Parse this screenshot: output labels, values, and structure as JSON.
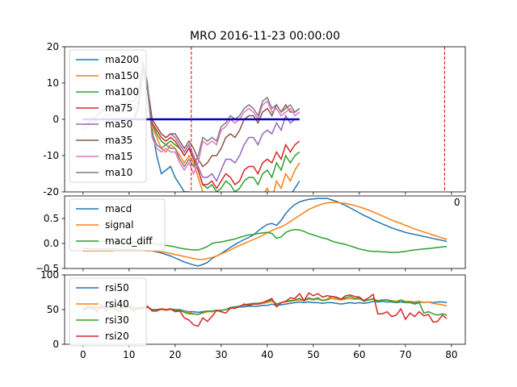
{
  "title": "MRO 2016-11-23 00:00:00",
  "colors": {
    "ma200": "#1f77b4",
    "ma150": "#ff7f0e",
    "ma100": "#2ca02c",
    "ma75": "#d62728",
    "ma50": "#9467bd",
    "ma35": "#8c564b",
    "ma15": "#e377c2",
    "ma10": "#7f7f7f",
    "marker_line": "#0000cc",
    "vline": "#dd0000"
  },
  "chart_data": [
    {
      "type": "line",
      "panel": "moving-averages",
      "title": "MRO 2016-11-23 00:00:00",
      "xlim": [
        -4,
        83
      ],
      "ylim": [
        -20,
        20
      ],
      "yticks": [
        20,
        10,
        0,
        -10,
        -20
      ],
      "xticks_visible": [
        "0"
      ],
      "legend_position": "upper-left",
      "vlines_x": [
        23.5,
        78.5
      ],
      "hline": {
        "y": 0,
        "x": [
          0,
          47
        ],
        "color": "#0000cc"
      },
      "series": [
        {
          "name": "ma200",
          "color": "#1f77b4",
          "x_start": 0,
          "values": [
            0,
            0,
            0,
            0,
            0,
            0,
            0,
            0,
            0,
            0,
            0,
            0,
            3,
            14,
            8,
            -3,
            -10,
            -15,
            -14,
            -13,
            -16,
            -18,
            -20,
            -20,
            -21,
            -24,
            -25,
            -25,
            -24,
            -23,
            -22,
            -24,
            -23,
            -24,
            -25,
            -22,
            -23,
            -21,
            -24,
            -22,
            -23,
            -24,
            -21,
            -22,
            -20,
            -21,
            -19,
            -17
          ]
        },
        {
          "name": "ma150",
          "color": "#ff7f0e",
          "x_start": 0,
          "values": [
            0,
            0,
            0,
            0,
            0,
            0,
            0,
            0,
            0,
            0,
            0,
            0,
            3,
            14,
            9,
            -2,
            -5,
            -8,
            -9,
            -7,
            -8,
            -10,
            -12,
            -10,
            -12,
            -16,
            -20,
            -21,
            -20,
            -22,
            -21,
            -22,
            -23,
            -25,
            -24,
            -22,
            -21,
            -20,
            -24,
            -21,
            -19,
            -22,
            -17,
            -19,
            -15,
            -17,
            -14,
            -12
          ]
        },
        {
          "name": "ma100",
          "color": "#2ca02c",
          "x_start": 0,
          "values": [
            0,
            0,
            0,
            0,
            0,
            0,
            0,
            0,
            0,
            0,
            0,
            0,
            3,
            14,
            9,
            -1,
            -4,
            -6,
            -7,
            -6,
            -7,
            -8,
            -10,
            -8,
            -11,
            -14,
            -18,
            -19,
            -18,
            -20,
            -19,
            -17,
            -18,
            -20,
            -19,
            -17,
            -16,
            -16,
            -18,
            -15,
            -14,
            -16,
            -12,
            -14,
            -10,
            -12,
            -10,
            -9
          ]
        },
        {
          "name": "ma75",
          "color": "#d62728",
          "x_start": 0,
          "values": [
            0,
            0,
            0,
            0,
            0,
            0,
            0,
            0,
            0,
            0,
            0,
            0,
            3,
            14,
            9,
            -1,
            -3,
            -5,
            -6,
            -5,
            -6,
            -8,
            -10,
            -8,
            -11,
            -14,
            -18,
            -18,
            -17,
            -19,
            -17,
            -15,
            -16,
            -18,
            -17,
            -14,
            -13,
            -13,
            -15,
            -12,
            -11,
            -12,
            -9,
            -11,
            -7,
            -9,
            -7,
            -6
          ]
        },
        {
          "name": "ma50",
          "color": "#9467bd",
          "x_start": 0,
          "values": [
            0,
            0,
            0,
            0,
            0,
            0,
            0,
            0,
            0,
            0,
            0,
            0,
            3,
            14,
            9,
            0,
            -2,
            -4,
            -5,
            -4,
            -5,
            -7,
            -9,
            -7,
            -10,
            -13,
            -16,
            -16,
            -15,
            -17,
            -14,
            -11,
            -11,
            -12,
            -10,
            -7,
            -5,
            -5,
            -7,
            -4,
            -3,
            -4,
            -1,
            -3,
            1,
            -1,
            0,
            0
          ]
        },
        {
          "name": "ma35",
          "color": "#8c564b",
          "x_start": 0,
          "values": [
            0,
            0,
            0,
            0,
            0,
            0,
            0,
            0,
            0,
            0,
            0,
            0,
            3,
            14,
            9,
            0,
            -2,
            -4,
            -5,
            -4,
            -4,
            -6,
            -8,
            -6,
            -8,
            -11,
            -13,
            -12,
            -10,
            -10,
            -8,
            -5,
            -4,
            -5,
            -3,
            0,
            1,
            1,
            -1,
            2,
            3,
            1,
            4,
            2,
            4,
            2,
            2,
            3
          ]
        },
        {
          "name": "ma15",
          "color": "#e377c2",
          "x_start": 0,
          "values": [
            -3,
            -2,
            -1,
            0,
            0,
            1,
            1,
            2,
            2,
            2,
            3,
            3,
            5,
            15,
            9,
            -5,
            -8,
            -9,
            -8,
            -9,
            -9,
            -12,
            -14,
            -12,
            -15,
            -12,
            -6,
            -7,
            -6,
            -7,
            -3,
            -2,
            0,
            -1,
            0,
            2,
            3,
            2,
            0,
            4,
            5,
            2,
            3,
            1,
            2,
            3,
            1,
            2
          ]
        },
        {
          "name": "ma10",
          "color": "#7f7f7f",
          "x_start": 0,
          "values": [
            -2,
            -1,
            0,
            1,
            2,
            3,
            3,
            4,
            4,
            4,
            5,
            5,
            7,
            16,
            10,
            -4,
            -7,
            -8,
            -7,
            -8,
            -8,
            -11,
            -13,
            -11,
            -13,
            -10,
            -5,
            -6,
            -5,
            -6,
            -2,
            -1,
            1,
            0,
            1,
            3,
            4,
            3,
            1,
            5,
            6,
            3,
            4,
            2,
            3,
            4,
            2,
            3
          ]
        }
      ]
    },
    {
      "type": "line",
      "panel": "macd",
      "xlim": [
        -4,
        83
      ],
      "ylim": [
        -0.5,
        0.95
      ],
      "yticks": [
        "0.5",
        "0.0",
        "−0.5"
      ],
      "ytick_values": [
        0.5,
        0.0,
        -0.5
      ],
      "legend_position": "upper-left",
      "series": [
        {
          "name": "macd",
          "color": "#1f77b4",
          "x_start": 0,
          "values": [
            -0.1,
            -0.1,
            -0.11,
            -0.11,
            -0.11,
            -0.11,
            -0.11,
            -0.11,
            -0.12,
            -0.12,
            -0.12,
            -0.12,
            -0.13,
            -0.13,
            -0.14,
            -0.15,
            -0.17,
            -0.19,
            -0.22,
            -0.25,
            -0.29,
            -0.33,
            -0.37,
            -0.4,
            -0.43,
            -0.45,
            -0.42,
            -0.38,
            -0.3,
            -0.25,
            -0.2,
            -0.14,
            -0.08,
            -0.02,
            0.03,
            0.08,
            0.12,
            0.17,
            0.25,
            0.32,
            0.38,
            0.4,
            0.36,
            0.46,
            0.6,
            0.7,
            0.78,
            0.83,
            0.86,
            0.88,
            0.89,
            0.9,
            0.9,
            0.9,
            0.87,
            0.84,
            0.8,
            0.76,
            0.71,
            0.66,
            0.61,
            0.56,
            0.52,
            0.47,
            0.43,
            0.39,
            0.35,
            0.31,
            0.28,
            0.25,
            0.22,
            0.2,
            0.18,
            0.16,
            0.14,
            0.12,
            0.1,
            0.08,
            0.06,
            0.04
          ]
        },
        {
          "name": "signal",
          "color": "#ff7f0e",
          "x_start": 0,
          "values": [
            -0.15,
            -0.15,
            -0.15,
            -0.15,
            -0.15,
            -0.15,
            -0.15,
            -0.14,
            -0.14,
            -0.14,
            -0.14,
            -0.14,
            -0.14,
            -0.14,
            -0.15,
            -0.15,
            -0.16,
            -0.17,
            -0.18,
            -0.2,
            -0.22,
            -0.24,
            -0.26,
            -0.28,
            -0.3,
            -0.32,
            -0.32,
            -0.3,
            -0.28,
            -0.25,
            -0.21,
            -0.17,
            -0.13,
            -0.08,
            -0.04,
            0.0,
            0.04,
            0.08,
            0.12,
            0.16,
            0.21,
            0.26,
            0.3,
            0.33,
            0.38,
            0.44,
            0.5,
            0.56,
            0.62,
            0.68,
            0.72,
            0.76,
            0.79,
            0.81,
            0.82,
            0.82,
            0.81,
            0.8,
            0.78,
            0.76,
            0.73,
            0.7,
            0.67,
            0.63,
            0.59,
            0.55,
            0.51,
            0.47,
            0.43,
            0.4,
            0.36,
            0.33,
            0.29,
            0.26,
            0.23,
            0.2,
            0.17,
            0.14,
            0.11,
            0.08
          ]
        },
        {
          "name": "macd_diff",
          "color": "#2ca02c",
          "x_start": 0,
          "values": [
            0.05,
            0.05,
            0.04,
            0.04,
            0.04,
            0.04,
            0.04,
            0.03,
            0.02,
            0.02,
            0.02,
            0.02,
            0.01,
            0.01,
            0.01,
            0.0,
            -0.01,
            -0.02,
            -0.04,
            -0.05,
            -0.07,
            -0.09,
            -0.11,
            -0.12,
            -0.13,
            -0.13,
            -0.1,
            -0.06,
            0.0,
            0.02,
            0.03,
            0.05,
            0.07,
            0.09,
            0.12,
            0.15,
            0.17,
            0.18,
            0.2,
            0.21,
            0.22,
            0.2,
            0.1,
            0.13,
            0.22,
            0.26,
            0.28,
            0.27,
            0.24,
            0.2,
            0.17,
            0.14,
            0.11,
            0.09,
            0.05,
            0.02,
            0.0,
            -0.02,
            -0.05,
            -0.08,
            -0.11,
            -0.13,
            -0.15,
            -0.16,
            -0.16,
            -0.17,
            -0.17,
            -0.18,
            -0.18,
            -0.17,
            -0.16,
            -0.14,
            -0.13,
            -0.12,
            -0.11,
            -0.1,
            -0.09,
            -0.08,
            -0.07,
            -0.06
          ]
        }
      ]
    },
    {
      "type": "line",
      "panel": "rsi",
      "xlim": [
        -4,
        83
      ],
      "ylim": [
        0,
        100
      ],
      "yticks": [
        100,
        50,
        0
      ],
      "xticks": [
        0,
        10,
        20,
        30,
        40,
        50,
        60,
        70,
        80
      ],
      "legend_position": "upper-left",
      "series": [
        {
          "name": "rsi50",
          "color": "#1f77b4",
          "x_start": 0,
          "values": [
            52,
            52,
            53,
            54,
            53,
            54,
            53,
            54,
            53,
            54,
            54,
            53,
            52,
            53,
            53,
            50,
            50,
            51,
            50,
            51,
            50,
            50,
            48,
            47,
            47,
            46,
            47,
            48,
            47,
            48,
            49,
            50,
            52,
            53,
            54,
            54,
            55,
            55,
            55,
            56,
            56,
            58,
            56,
            57,
            58,
            59,
            60,
            61,
            60,
            61,
            60,
            60,
            59,
            60,
            60,
            59,
            58,
            59,
            60,
            59,
            60,
            59,
            60,
            62,
            61,
            62,
            61,
            61,
            60,
            61,
            60,
            61,
            60,
            61,
            60,
            61,
            60,
            61,
            61,
            60
          ]
        },
        {
          "name": "rsi40",
          "color": "#ff7f0e",
          "x_start": 0,
          "values": [
            50,
            51,
            52,
            53,
            52,
            53,
            52,
            53,
            52,
            53,
            53,
            52,
            51,
            52,
            53,
            49,
            49,
            50,
            49,
            50,
            49,
            49,
            47,
            46,
            44,
            43,
            45,
            47,
            47,
            48,
            49,
            50,
            53,
            54,
            55,
            56,
            57,
            58,
            58,
            59,
            60,
            62,
            58,
            60,
            61,
            62,
            63,
            64,
            63,
            65,
            64,
            65,
            63,
            64,
            66,
            65,
            64,
            65,
            66,
            65,
            65,
            63,
            64,
            65,
            63,
            64,
            64,
            63,
            62,
            64,
            62,
            62,
            61,
            62,
            60,
            61,
            59,
            58,
            57,
            55
          ]
        },
        {
          "name": "rsi30",
          "color": "#2ca02c",
          "x_start": 0,
          "values": [
            52,
            51,
            53,
            54,
            52,
            54,
            52,
            55,
            52,
            54,
            55,
            53,
            51,
            53,
            54,
            50,
            49,
            51,
            50,
            51,
            49,
            49,
            46,
            44,
            44,
            43,
            46,
            48,
            48,
            49,
            49,
            50,
            53,
            54,
            55,
            57,
            58,
            59,
            59,
            60,
            62,
            64,
            58,
            60,
            62,
            63,
            64,
            66,
            63,
            67,
            65,
            67,
            63,
            65,
            69,
            67,
            65,
            67,
            69,
            66,
            67,
            62,
            64,
            66,
            62,
            64,
            64,
            62,
            60,
            64,
            60,
            60,
            58,
            60,
            45,
            47,
            44,
            42,
            44,
            42
          ]
        },
        {
          "name": "rsi20",
          "color": "#d62728",
          "x_start": 0,
          "values": [
            48,
            55,
            53,
            47,
            58,
            48,
            57,
            50,
            47,
            55,
            54,
            48,
            53,
            51,
            55,
            48,
            48,
            51,
            50,
            51,
            47,
            48,
            38,
            35,
            28,
            26,
            38,
            33,
            40,
            49,
            47,
            45,
            52,
            52,
            54,
            58,
            56,
            58,
            58,
            60,
            63,
            66,
            54,
            60,
            62,
            67,
            66,
            73,
            63,
            74,
            70,
            73,
            68,
            70,
            69,
            68,
            65,
            70,
            71,
            69,
            68,
            63,
            67,
            72,
            44,
            44,
            47,
            40,
            42,
            51,
            36,
            45,
            40,
            47,
            41,
            43,
            32,
            33,
            42,
            37
          ]
        }
      ]
    }
  ]
}
